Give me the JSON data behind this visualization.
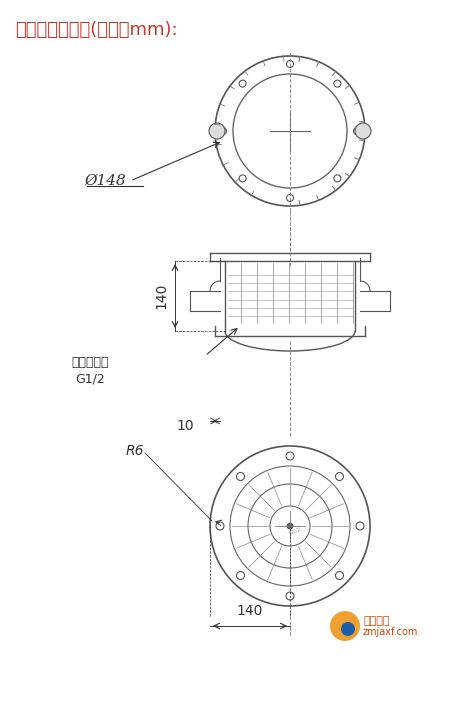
{
  "title": "灯具外形和尺寸(单位：mm):",
  "title_color": "#c0392b",
  "title_fontsize": 13,
  "bg_color": "#ffffff",
  "dim_color": "#333333",
  "line_color": "#555555",
  "fig_width": 4.59,
  "fig_height": 7.21,
  "dpi": 100,
  "annotations": {
    "diameter": "Ø148",
    "height_side": "140",
    "height_bottom": "140",
    "r6": "R6",
    "dim10": "10",
    "entry": "引入口规格\nG1/2"
  },
  "watermark_text": "智淼消防\nzmjaxf.com",
  "watermark_color": "#cc6600"
}
